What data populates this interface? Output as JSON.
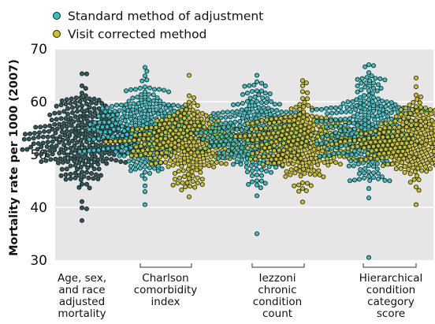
{
  "chart_data": {
    "type": "scatter",
    "subtype": "beeswarm",
    "title": "",
    "xlabel": "",
    "ylabel": "Mortality rate per 1000 (2007)",
    "ylim": [
      30,
      70
    ],
    "yticks": [
      30,
      40,
      50,
      60,
      70
    ],
    "grid": true,
    "legend_position": "top-left",
    "colors": {
      "standard": "#2ec4c8",
      "visit": "#ccc21a",
      "age_sex_race": "#2a5a5c",
      "background": "#e6e6e6",
      "gridline": "#ffffff",
      "marker_edge": "#1a1a1a"
    },
    "series": [
      {
        "name": "Standard method of adjustment",
        "color": "#2ec4c8"
      },
      {
        "name": "Visit corrected method",
        "color": "#ccc21a"
      }
    ],
    "groups": [
      {
        "id": "age_sex_race",
        "label": [
          "Age, sex,",
          "and race",
          "adjusted",
          "mortality"
        ],
        "bracket": false,
        "swarms": [
          {
            "series": "Age, sex, and race adjusted",
            "color": "#2a5a5c",
            "min": 37.5,
            "max": 65.3,
            "center": 53.0,
            "spread": 4.3,
            "n": 300
          }
        ]
      },
      {
        "id": "charlson",
        "label": [
          "Charlson",
          "comorbidity",
          "index"
        ],
        "bracket": true,
        "swarms": [
          {
            "series": "Standard method of adjustment",
            "color": "#2ec4c8",
            "min": 40.5,
            "max": 66.5,
            "center": 54.8,
            "spread": 4.2,
            "n": 300
          },
          {
            "series": "Visit corrected method",
            "color": "#ccc21a",
            "min": 42.0,
            "max": 65.0,
            "center": 52.2,
            "spread": 3.3,
            "n": 290
          }
        ]
      },
      {
        "id": "iezzoni",
        "label": [
          "Iezzoni",
          "chronic",
          "condition",
          "count"
        ],
        "bracket": true,
        "swarms": [
          {
            "series": "Standard method of adjustment",
            "color": "#2ec4c8",
            "min": 35.0,
            "max": 65.0,
            "center": 54.0,
            "spread": 4.3,
            "n": 300
          },
          {
            "series": "Visit corrected method",
            "color": "#ccc21a",
            "min": 41.0,
            "max": 64.0,
            "center": 52.5,
            "spread": 3.5,
            "n": 290
          }
        ]
      },
      {
        "id": "hcc",
        "label": [
          "Hierarchical",
          "condition",
          "category",
          "score"
        ],
        "bracket": true,
        "swarms": [
          {
            "series": "Standard method of adjustment",
            "color": "#2ec4c8",
            "min": 30.5,
            "max": 67.0,
            "center": 54.3,
            "spread": 4.6,
            "n": 300
          },
          {
            "series": "Visit corrected method",
            "color": "#ccc21a",
            "min": 40.5,
            "max": 64.5,
            "center": 52.3,
            "spread": 3.3,
            "n": 290
          }
        ]
      }
    ]
  }
}
